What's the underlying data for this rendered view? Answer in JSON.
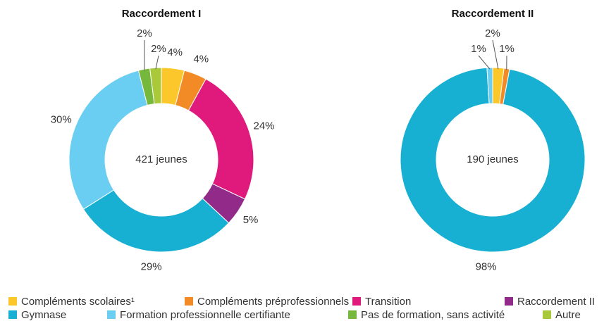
{
  "legend": [
    {
      "name": "Compléments scolaires¹",
      "color": "#fcc72a"
    },
    {
      "name": "Compléments préprofessionnels",
      "color": "#f28b26"
    },
    {
      "name": "Transition",
      "color": "#e0197d"
    },
    {
      "name": "Raccordement II",
      "color": "#922a8a"
    },
    {
      "name": "Gymnase",
      "color": "#17b0d2"
    },
    {
      "name": "Formation professionnelle certifiante",
      "color": "#6acdf2"
    },
    {
      "name": "Pas de formation, sans activité",
      "color": "#76b83c"
    },
    {
      "name": "Autre",
      "color": "#a9c93a"
    }
  ],
  "chart_data": [
    {
      "type": "pie",
      "title": "Raccordement I",
      "center_label": "421 jeunes",
      "values": [
        4,
        4,
        24,
        5,
        29,
        30,
        2,
        2
      ],
      "value_labels": [
        "4%",
        "4%",
        "24%",
        "5%",
        "29%",
        "30%",
        "2%",
        "2%"
      ]
    },
    {
      "type": "pie",
      "title": "Raccordement II",
      "center_label": "190 jeunes",
      "values": [
        2,
        1,
        null,
        null,
        98,
        1,
        null,
        null
      ],
      "value_labels": [
        "2%",
        "1%",
        null,
        null,
        "98%",
        "1%",
        null,
        null
      ]
    }
  ]
}
